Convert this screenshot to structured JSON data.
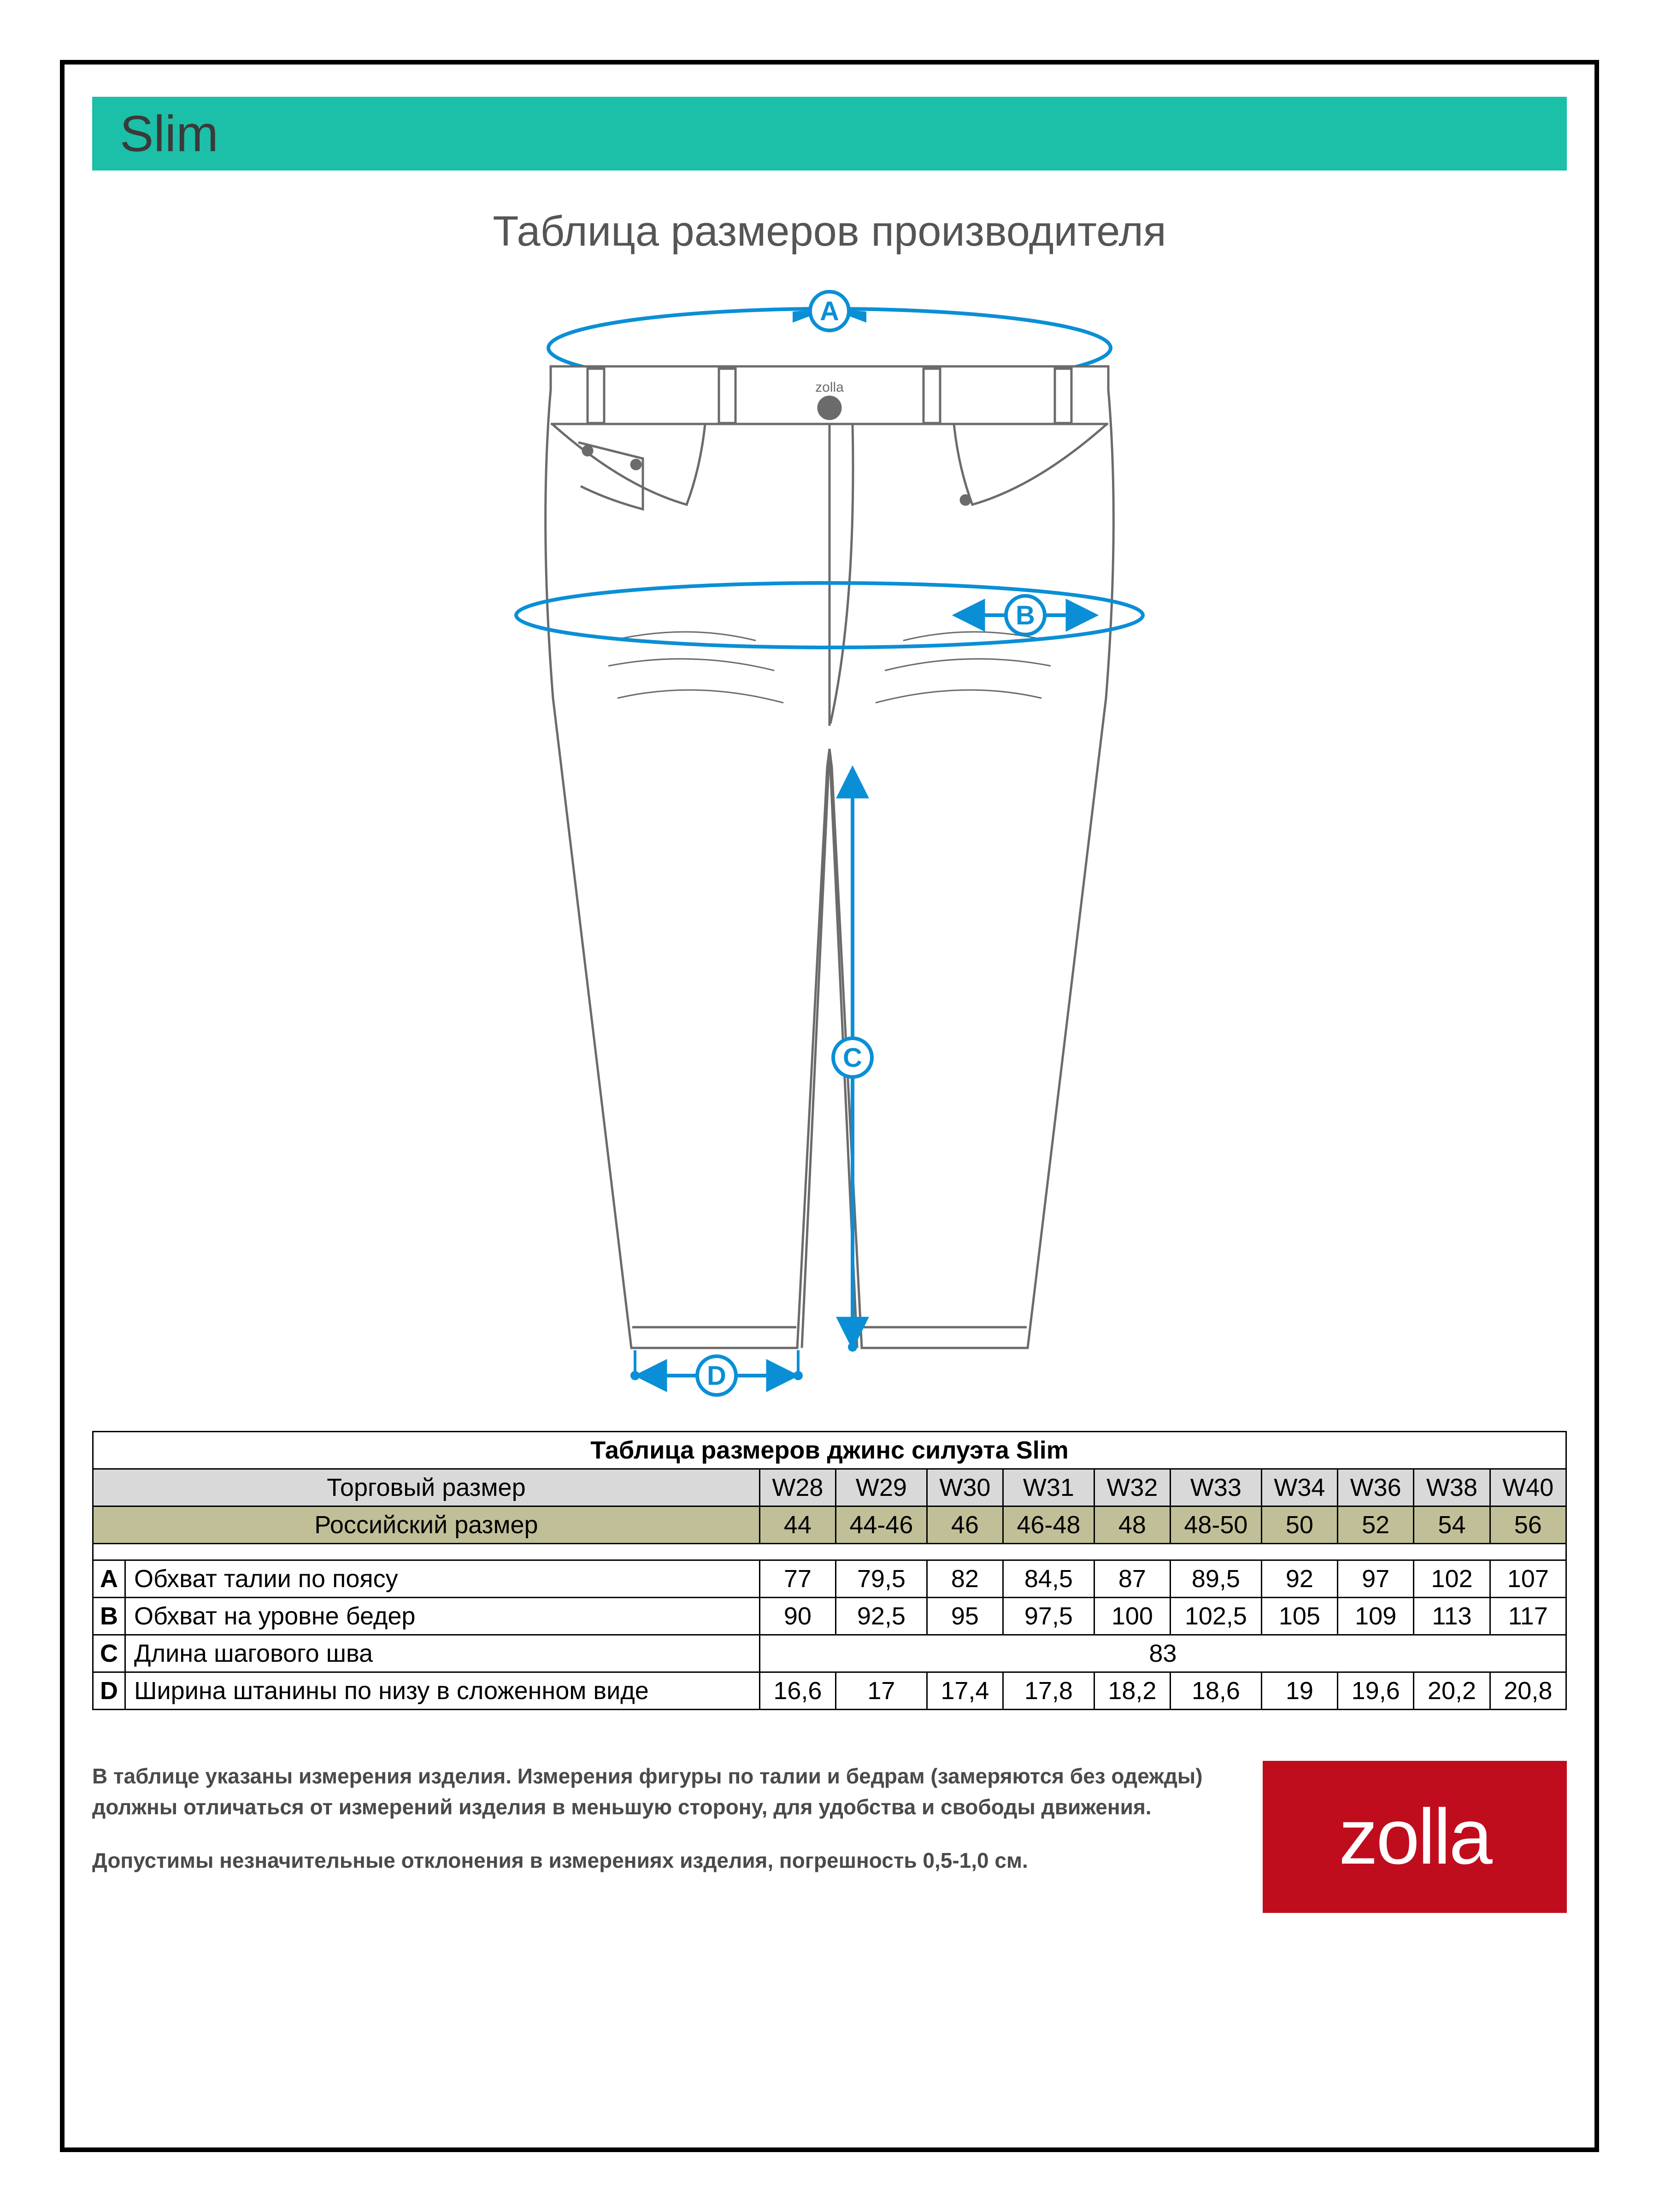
{
  "colors": {
    "header_bg": "#1cbfa8",
    "header_text": "#3a3a3a",
    "title_text": "#555555",
    "frame_border": "#000000",
    "table_border": "#000000",
    "row_grey": "#d9d9d9",
    "row_olive": "#c0bf97",
    "body_text": "#4a4a4a",
    "logo_bg": "#c00d1e",
    "logo_text": "#ffffff",
    "diagram_line": "#6b6b6b",
    "measure_blue": "#0a8fd6",
    "bg": "#ffffff"
  },
  "header": {
    "label": "Slim"
  },
  "title": "Таблица размеров производителя",
  "diagram": {
    "brand_label_on_pants": "zolla",
    "markers": {
      "A": {
        "label": "A",
        "color": "#0a8fd6"
      },
      "B": {
        "label": "B",
        "color": "#0a8fd6"
      },
      "C": {
        "label": "C",
        "color": "#0a8fd6"
      },
      "D": {
        "label": "D",
        "color": "#0a8fd6"
      }
    },
    "line_width_outline": 5,
    "line_width_measure": 8
  },
  "table": {
    "title": "Таблица размеров джинс силуэта Slim",
    "trade_label": "Торговый размер",
    "ru_label": "Российский размер",
    "sizes_trade": [
      "W28",
      "W29",
      "W30",
      "W31",
      "W32",
      "W33",
      "W34",
      "W36",
      "W38",
      "W40"
    ],
    "sizes_ru": [
      "44",
      "44-46",
      "46",
      "46-48",
      "48",
      "48-50",
      "50",
      "52",
      "54",
      "56"
    ],
    "rows": [
      {
        "letter": "A",
        "label": "Обхват талии по поясу",
        "values": [
          "77",
          "79,5",
          "82",
          "84,5",
          "87",
          "89,5",
          "92",
          "97",
          "102",
          "107"
        ]
      },
      {
        "letter": "B",
        "label": "Обхват на уровне бедер",
        "values": [
          "90",
          "92,5",
          "95",
          "97,5",
          "100",
          "102,5",
          "105",
          "109",
          "113",
          "117"
        ]
      },
      {
        "letter": "C",
        "label": "Длина шагового шва",
        "merged_value": "83"
      },
      {
        "letter": "D",
        "label": "Ширина штанины по низу в сложенном виде",
        "values": [
          "16,6",
          "17",
          "17,4",
          "17,8",
          "18,2",
          "18,6",
          "19",
          "19,6",
          "20,2",
          "20,8"
        ]
      }
    ],
    "col_widths": {
      "letter": 70,
      "label": 1260,
      "value": 185
    }
  },
  "footer": {
    "note1": "В таблице указаны измерения изделия. Измерения фигуры по талии и бедрам (замеряются без одежды) должны отличаться от измерений изделия в меньшую сторону, для удобства и свободы движения.",
    "note2": "Допустимы незначительные отклонения в измерениях изделия, погрешность 0,5-1,0 см.",
    "logo_text": "zolla"
  }
}
